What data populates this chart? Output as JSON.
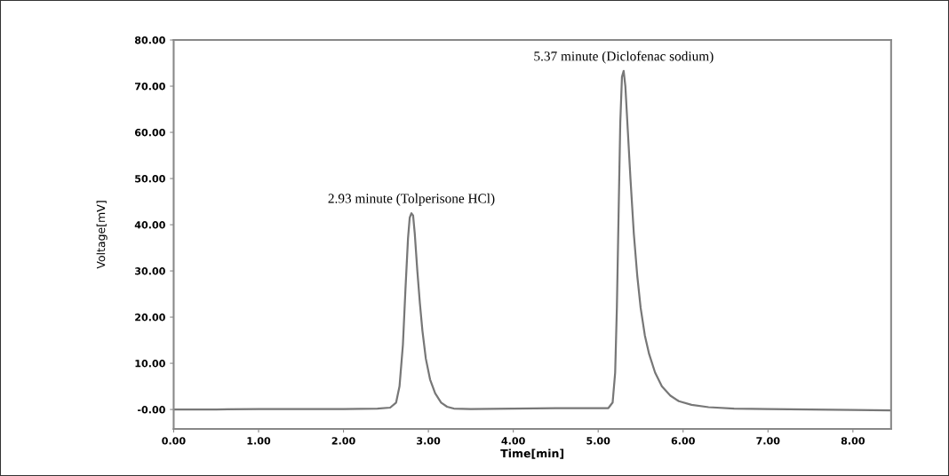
{
  "chart_data": {
    "type": "line",
    "xlabel": "Time[min]",
    "ylabel": "Voltage[mV]",
    "x": [
      0,
      0.5,
      1.0,
      1.5,
      2.0,
      2.4,
      2.55,
      2.62,
      2.66,
      2.7,
      2.73,
      2.76,
      2.78,
      2.8,
      2.82,
      2.84,
      2.87,
      2.9,
      2.93,
      2.97,
      3.02,
      3.08,
      3.15,
      3.22,
      3.3,
      3.5,
      4.0,
      4.5,
      5.0,
      5.12,
      5.17,
      5.2,
      5.22,
      5.24,
      5.26,
      5.28,
      5.3,
      5.32,
      5.35,
      5.38,
      5.42,
      5.46,
      5.5,
      5.55,
      5.6,
      5.67,
      5.75,
      5.85,
      5.95,
      6.1,
      6.3,
      6.6,
      7.0,
      7.5,
      8.0,
      8.45
    ],
    "series": [
      {
        "color": "#777777",
        "values": [
          0,
          0,
          0.1,
          0.1,
          0.1,
          0.2,
          0.4,
          1.5,
          5,
          14,
          26,
          37,
          41.5,
          42.5,
          42,
          38,
          30,
          23,
          17,
          11,
          6.5,
          3.5,
          1.5,
          0.6,
          0.2,
          0.1,
          0.2,
          0.3,
          0.3,
          0.3,
          1.5,
          8,
          22,
          42,
          62,
          72,
          73.3,
          70,
          60,
          50,
          38,
          29,
          22,
          16,
          12,
          8,
          5,
          3,
          1.8,
          1,
          0.5,
          0.2,
          0.1,
          0,
          -0.1,
          -0.2
        ]
      }
    ],
    "xlim": [
      0,
      8.45
    ],
    "ylim": [
      -4.2,
      80
    ],
    "xticks": [
      {
        "value": 0,
        "label": "0.00"
      },
      {
        "value": 1,
        "label": "1.00"
      },
      {
        "value": 2,
        "label": "2.00"
      },
      {
        "value": 3,
        "label": "3.00"
      },
      {
        "value": 4,
        "label": "4.00"
      },
      {
        "value": 5,
        "label": "5.00"
      },
      {
        "value": 6,
        "label": "6.00"
      },
      {
        "value": 7,
        "label": "7.00"
      },
      {
        "value": 8,
        "label": "8.00"
      }
    ],
    "yticks": [
      {
        "value": 0,
        "label": "-0.00"
      },
      {
        "value": 10,
        "label": "10.00"
      },
      {
        "value": 20,
        "label": "20.00"
      },
      {
        "value": 30,
        "label": "30.00"
      },
      {
        "value": 40,
        "label": "40.00"
      },
      {
        "value": 50,
        "label": "50.00"
      },
      {
        "value": 60,
        "label": "60.00"
      },
      {
        "value": 70,
        "label": "70.00"
      },
      {
        "value": 80,
        "label": "80.00"
      }
    ],
    "annotations": [
      {
        "text": "2.93 minute (Tolperisone HCl)",
        "x": 2.8,
        "y": 42.5
      },
      {
        "text": "5.37 minute (Diclofenac sodium)",
        "x": 5.3,
        "y": 73.3
      }
    ],
    "grid": false,
    "legend": false,
    "marker": "none",
    "line_style": "solid"
  }
}
